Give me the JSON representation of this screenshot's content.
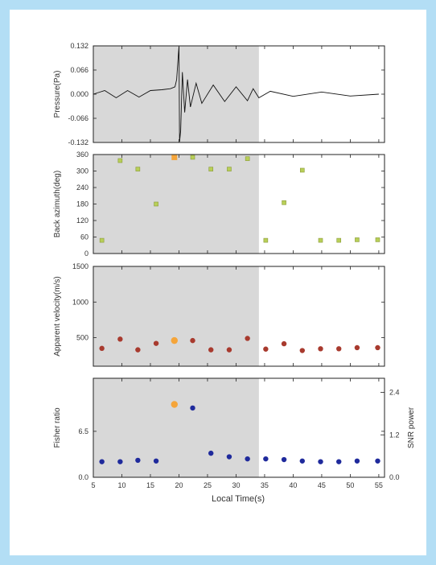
{
  "colors": {
    "border": "#b3def5",
    "shade": "#d8d8d8",
    "axis": "#222222",
    "waveform": "#111111",
    "green": "#b8cf57",
    "orange": "#f5a53a",
    "red": "#a83a2e",
    "blue": "#1f2a9c"
  },
  "xaxis": {
    "label": "Local Time(s)",
    "ticks": [
      5,
      10,
      15,
      20,
      25,
      30,
      35,
      40,
      45,
      50,
      55
    ],
    "range": [
      5,
      56
    ],
    "shade_range": [
      5,
      34
    ]
  },
  "chart_data": [
    {
      "type": "line",
      "name": "pressure",
      "ylabel": "Pressure(Pa)",
      "ylim": [
        -0.132,
        0.132
      ],
      "yticks": [
        "0.132",
        "0.066",
        "0.000",
        "-0.066",
        "-0.132"
      ],
      "yticks_values": [
        0.132,
        0.066,
        0.0,
        -0.066,
        -0.132
      ],
      "x": [
        5.0,
        7.0,
        9.0,
        11.0,
        13.0,
        15.0,
        17.0,
        18.5,
        19.3,
        19.6,
        19.9,
        20.0,
        20.1,
        20.3,
        20.6,
        21.0,
        21.5,
        22.0,
        23.0,
        24.0,
        26.0,
        28.0,
        30.0,
        32.0,
        33.0,
        34.0,
        36.0,
        40.0,
        45.0,
        50.0,
        55.0
      ],
      "y": [
        0.0,
        0.01,
        -0.01,
        0.01,
        -0.008,
        0.01,
        0.012,
        0.015,
        0.02,
        0.04,
        0.11,
        0.13,
        -0.13,
        -0.1,
        0.06,
        -0.05,
        0.04,
        -0.035,
        0.03,
        -0.025,
        0.025,
        -0.02,
        0.02,
        -0.018,
        0.015,
        -0.01,
        0.008,
        -0.006,
        0.006,
        -0.005,
        0.0
      ]
    },
    {
      "type": "scatter",
      "name": "back-azimuth",
      "ylabel": "Back azimuth(deg)",
      "ylim": [
        0,
        360
      ],
      "yticks": [
        0,
        60,
        120,
        180,
        240,
        300,
        360
      ],
      "points": [
        {
          "x": 6.5,
          "y": 48,
          "color": "green"
        },
        {
          "x": 9.7,
          "y": 338,
          "color": "green"
        },
        {
          "x": 12.8,
          "y": 307,
          "color": "green"
        },
        {
          "x": 16.0,
          "y": 180,
          "color": "green"
        },
        {
          "x": 19.2,
          "y": 350,
          "color": "orange"
        },
        {
          "x": 22.4,
          "y": 350,
          "color": "green"
        },
        {
          "x": 25.6,
          "y": 307,
          "color": "green"
        },
        {
          "x": 28.8,
          "y": 307,
          "color": "green"
        },
        {
          "x": 32.0,
          "y": 345,
          "color": "green"
        },
        {
          "x": 35.2,
          "y": 48,
          "color": "green"
        },
        {
          "x": 38.4,
          "y": 185,
          "color": "green"
        },
        {
          "x": 41.6,
          "y": 303,
          "color": "green"
        },
        {
          "x": 44.8,
          "y": 48,
          "color": "green"
        },
        {
          "x": 48.0,
          "y": 48,
          "color": "green"
        },
        {
          "x": 51.2,
          "y": 50,
          "color": "green"
        },
        {
          "x": 54.8,
          "y": 50,
          "color": "green"
        }
      ]
    },
    {
      "type": "scatter",
      "name": "apparent-velocity",
      "ylabel": "Apparent velocity(m/s)",
      "ylim": [
        100,
        1500
      ],
      "yticks": [
        500,
        1000,
        1500
      ],
      "points": [
        {
          "x": 6.5,
          "y": 350,
          "color": "red"
        },
        {
          "x": 9.7,
          "y": 480,
          "color": "red"
        },
        {
          "x": 12.8,
          "y": 330,
          "color": "red"
        },
        {
          "x": 16.0,
          "y": 420,
          "color": "red"
        },
        {
          "x": 19.2,
          "y": 460,
          "color": "orange"
        },
        {
          "x": 22.4,
          "y": 460,
          "color": "red"
        },
        {
          "x": 25.6,
          "y": 330,
          "color": "red"
        },
        {
          "x": 28.8,
          "y": 330,
          "color": "red"
        },
        {
          "x": 32.0,
          "y": 490,
          "color": "red"
        },
        {
          "x": 35.2,
          "y": 340,
          "color": "red"
        },
        {
          "x": 38.4,
          "y": 415,
          "color": "red"
        },
        {
          "x": 41.6,
          "y": 320,
          "color": "red"
        },
        {
          "x": 44.8,
          "y": 345,
          "color": "red"
        },
        {
          "x": 48.0,
          "y": 345,
          "color": "red"
        },
        {
          "x": 51.2,
          "y": 360,
          "color": "red"
        },
        {
          "x": 54.8,
          "y": 360,
          "color": "red"
        }
      ]
    },
    {
      "type": "scatter",
      "name": "fisher-ratio",
      "ylabel": "Fisher ratio",
      "ylabel_right": "SNR power",
      "ylim": [
        0,
        14
      ],
      "yticks": [
        "0.0",
        "6.5"
      ],
      "yticks_values": [
        0,
        6.5
      ],
      "ylim_right": [
        0,
        2.8
      ],
      "yticks_right": [
        "0.0",
        "1.2",
        "2.4"
      ],
      "yticks_right_values": [
        0,
        1.2,
        2.4
      ],
      "points": [
        {
          "x": 6.5,
          "y": 2.2,
          "color": "blue"
        },
        {
          "x": 9.7,
          "y": 2.2,
          "color": "blue"
        },
        {
          "x": 12.8,
          "y": 2.4,
          "color": "blue"
        },
        {
          "x": 16.0,
          "y": 2.3,
          "color": "blue"
        },
        {
          "x": 19.2,
          "y": 10.3,
          "color": "orange"
        },
        {
          "x": 22.4,
          "y": 9.8,
          "color": "blue"
        },
        {
          "x": 25.6,
          "y": 3.4,
          "color": "blue"
        },
        {
          "x": 28.8,
          "y": 2.9,
          "color": "blue"
        },
        {
          "x": 32.0,
          "y": 2.6,
          "color": "blue"
        },
        {
          "x": 35.2,
          "y": 2.6,
          "color": "blue"
        },
        {
          "x": 38.4,
          "y": 2.5,
          "color": "blue"
        },
        {
          "x": 41.6,
          "y": 2.3,
          "color": "blue"
        },
        {
          "x": 44.8,
          "y": 2.2,
          "color": "blue"
        },
        {
          "x": 48.0,
          "y": 2.2,
          "color": "blue"
        },
        {
          "x": 51.2,
          "y": 2.3,
          "color": "blue"
        },
        {
          "x": 54.8,
          "y": 2.3,
          "color": "blue"
        }
      ]
    }
  ]
}
